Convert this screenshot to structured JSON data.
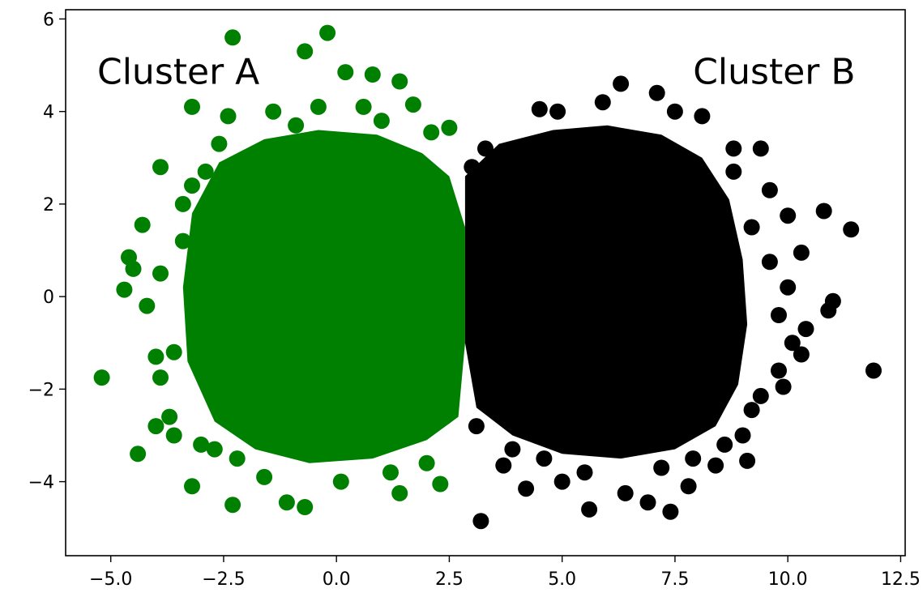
{
  "chart_data": {
    "type": "scatter",
    "xlim": [
      -6.0,
      12.6
    ],
    "ylim": [
      -5.6,
      6.2
    ],
    "grid": false,
    "x_ticks": [
      -5.0,
      -2.5,
      0.0,
      2.5,
      5.0,
      7.5,
      10.0,
      12.5
    ],
    "x_tick_labels": [
      "−5.0",
      "−2.5",
      "0.0",
      "2.5",
      "5.0",
      "7.5",
      "10.0",
      "12.5"
    ],
    "y_ticks": [
      -4,
      -2,
      0,
      2,
      4,
      6
    ],
    "y_tick_labels": [
      "−4",
      "−2",
      "0",
      "2",
      "4",
      "6"
    ],
    "annotations": [
      {
        "text": "Cluster A",
        "x": -5.3,
        "y": 4.6
      },
      {
        "text": "Cluster B",
        "x": 7.9,
        "y": 4.6
      }
    ],
    "series": [
      {
        "color": "#008000",
        "points": [
          [
            -5.2,
            -1.75
          ],
          [
            -4.6,
            0.85
          ],
          [
            -4.7,
            0.15
          ],
          [
            -4.3,
            1.55
          ],
          [
            -4.4,
            -3.4
          ],
          [
            -4.0,
            -2.8
          ],
          [
            -3.9,
            2.8
          ],
          [
            -3.9,
            -1.75
          ],
          [
            -4.0,
            -1.3
          ],
          [
            -3.7,
            -2.6
          ],
          [
            -3.2,
            -4.1
          ],
          [
            -3.2,
            4.1
          ],
          [
            -2.3,
            5.6
          ],
          [
            -2.3,
            -4.5
          ],
          [
            -1.1,
            -4.45
          ],
          [
            -0.7,
            -4.55
          ],
          [
            -0.7,
            5.3
          ],
          [
            -0.2,
            5.7
          ],
          [
            0.2,
            4.85
          ],
          [
            0.8,
            4.8
          ],
          [
            1.4,
            4.65
          ],
          [
            1.4,
            -4.25
          ],
          [
            2.3,
            -4.05
          ],
          [
            1.7,
            4.15
          ],
          [
            2.1,
            3.55
          ],
          [
            2.5,
            3.65
          ],
          [
            -2.4,
            3.9
          ],
          [
            -3.4,
            2.0
          ],
          [
            -3.6,
            -3.0
          ],
          [
            -3.0,
            -3.2
          ],
          [
            -3.9,
            0.5
          ],
          [
            -4.5,
            0.6
          ],
          [
            -4.2,
            -0.2
          ],
          [
            -3.6,
            -1.2
          ],
          [
            -3.4,
            1.2
          ],
          [
            -2.9,
            2.7
          ],
          [
            -2.7,
            -3.3
          ],
          [
            -2.2,
            -3.5
          ],
          [
            -1.6,
            -3.9
          ],
          [
            -0.4,
            4.1
          ],
          [
            0.6,
            4.1
          ],
          [
            1.0,
            3.8
          ],
          [
            2.0,
            -3.6
          ],
          [
            2.4,
            -2.6
          ],
          [
            1.2,
            -3.8
          ],
          [
            0.1,
            -4.0
          ],
          [
            -1.4,
            4.0
          ],
          [
            -0.9,
            3.7
          ],
          [
            -2.6,
            3.3
          ],
          [
            -3.2,
            2.4
          ]
        ]
      },
      {
        "color": "#000000",
        "points": [
          [
            3.2,
            -4.85
          ],
          [
            5.6,
            -4.6
          ],
          [
            7.4,
            -4.65
          ],
          [
            6.9,
            -4.45
          ],
          [
            7.8,
            -4.1
          ],
          [
            6.4,
            -4.25
          ],
          [
            4.2,
            -4.15
          ],
          [
            5.0,
            -4.0
          ],
          [
            3.7,
            -3.65
          ],
          [
            6.3,
            4.6
          ],
          [
            7.1,
            4.4
          ],
          [
            8.1,
            3.9
          ],
          [
            8.8,
            3.2
          ],
          [
            9.4,
            3.2
          ],
          [
            9.6,
            2.3
          ],
          [
            10.0,
            1.75
          ],
          [
            10.8,
            1.85
          ],
          [
            11.4,
            1.45
          ],
          [
            10.3,
            0.95
          ],
          [
            9.6,
            0.75
          ],
          [
            11.0,
            -0.1
          ],
          [
            10.9,
            -0.3
          ],
          [
            10.4,
            -0.7
          ],
          [
            10.1,
            -1.0
          ],
          [
            10.3,
            -1.25
          ],
          [
            9.8,
            -1.6
          ],
          [
            11.9,
            -1.6
          ],
          [
            9.9,
            -1.95
          ],
          [
            9.4,
            -2.15
          ],
          [
            9.2,
            -2.45
          ],
          [
            9.0,
            -3.0
          ],
          [
            8.4,
            -3.65
          ],
          [
            9.1,
            -3.55
          ],
          [
            8.6,
            -3.2
          ],
          [
            7.9,
            -3.5
          ],
          [
            5.9,
            4.2
          ],
          [
            4.9,
            4.0
          ],
          [
            4.5,
            4.05
          ],
          [
            7.5,
            4.0
          ],
          [
            3.3,
            3.2
          ],
          [
            3.0,
            2.8
          ],
          [
            3.9,
            -3.3
          ],
          [
            4.6,
            -3.5
          ],
          [
            5.5,
            -3.8
          ],
          [
            7.2,
            -3.7
          ],
          [
            8.8,
            2.7
          ],
          [
            9.2,
            1.5
          ],
          [
            10.0,
            0.2
          ],
          [
            9.8,
            -0.4
          ],
          [
            3.1,
            -2.8
          ]
        ]
      }
    ]
  }
}
